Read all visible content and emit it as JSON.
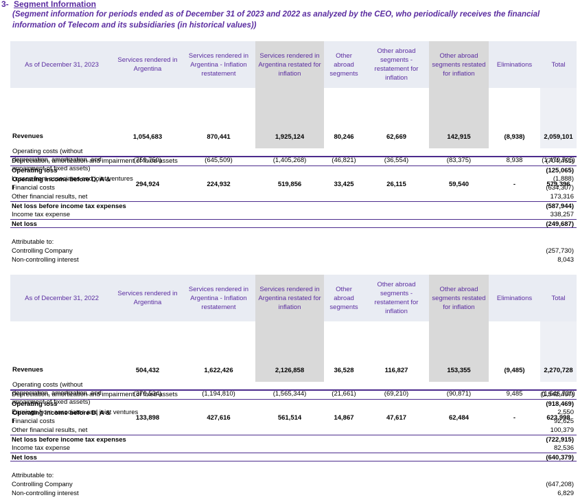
{
  "header": {
    "number": "3-",
    "title": "Segment Information",
    "subtitle": "(Segment information for periods ended as of December 31 of 2023 and 2022 as analyzed by the CEO, who periodically receives the financial information of Telecom and its subsidiaries (in historical values))"
  },
  "tables": [
    {
      "columns": [
        "As of December 31, 2023",
        "Services rendered in Argentina",
        "Services rendered in Argentina - Inflation restatement",
        "Services rendered in Argentina restated for inflation",
        "Other abroad segments",
        "Other abroad segments - restatement for inflation",
        "Other abroad segments restated for inflation",
        "Eliminations",
        "Total"
      ],
      "rows": [
        {
          "label": "Revenues",
          "cells": [
            "1,054,683",
            "870,441",
            "1,925,124",
            "80,246",
            "62,669",
            "142,915",
            "(8,938)",
            "2,059,101"
          ],
          "bold": true
        },
        {
          "label": "Operating costs (without depreciation, amortization, and impairment of fixed assets)",
          "cells": [
            "(759,759)",
            "(645,509)",
            "(1,405,268)",
            "(46,821)",
            "(36,554)",
            "(83,375)",
            "8,938",
            "(1,479,705)"
          ],
          "bold": false
        },
        {
          "label": "Operating income before D, A & I",
          "cells": [
            "294,924",
            "224,932",
            "519,856",
            "33,425",
            "26,115",
            "59,540",
            "-",
            "579,396"
          ],
          "bold": true
        }
      ],
      "summary": [
        {
          "label": "Depreciation, amortization and impairment of fixed assets",
          "value": "(704,461)",
          "bold": false
        },
        {
          "label": "Operating loss",
          "value": "(125,065)",
          "bold": true
        },
        {
          "label": "Losses from associates and joint ventures",
          "value": "(1,888)",
          "bold": false
        },
        {
          "label": "Financial costs",
          "value": "(634,307)",
          "bold": false
        },
        {
          "label": "Other financial results, net",
          "value": "173,316",
          "bold": false
        },
        {
          "label": "Net loss before income tax expenses",
          "value": "(587,944)",
          "bold": true
        },
        {
          "label": "Income tax expense",
          "value": "338,257",
          "bold": false
        },
        {
          "label": "Net loss",
          "value": "(249,687)",
          "bold": true
        },
        {
          "label": "Attributable to:",
          "bold": false
        },
        {
          "label": "Controlling Company",
          "value": "(257,730)",
          "bold": false
        },
        {
          "label": "Non-controlling interest",
          "value": "8,043",
          "bold": false
        }
      ]
    },
    {
      "columns": [
        "As of December 31, 2022",
        "Services rendered in Argentina",
        "Services rendered in Argentina - Inflation restatement",
        "Services rendered in Argentina restated for inflation",
        "Other abroad segments",
        "Other abroad segments - restatement for inflation",
        "Other abroad segments restated for inflation",
        "Eliminations",
        "Total"
      ],
      "rows": [
        {
          "label": "Revenues",
          "cells": [
            "504,432",
            "1,622,426",
            "2,126,858",
            "36,528",
            "116,827",
            "153,355",
            "(9,485)",
            "2,270,728"
          ],
          "bold": true
        },
        {
          "label": "Operating costs (without depreciation, amortization, and impairment of fixed assets)",
          "cells": [
            "(370,534)",
            "(1,194,810)",
            "(1,565,344)",
            "(21,661)",
            "(69,210)",
            "(90,871)",
            "9,485",
            "(1,646,730)"
          ],
          "bold": false
        },
        {
          "label": "Operating income before D, A & I",
          "cells": [
            "133,898",
            "427,616",
            "561,514",
            "14,867",
            "47,617",
            "62,484",
            "-",
            "623,998"
          ],
          "bold": true
        }
      ],
      "summary": [
        {
          "label": "Depreciation, amortization and impairment of fixed assets",
          "value": "(1,542,467)",
          "bold": false
        },
        {
          "label": "Operating loss",
          "value": "(918,469)",
          "bold": true
        },
        {
          "label": "Earnings from associates and joint ventures",
          "value": "2,550",
          "bold": false
        },
        {
          "label": "Financial costs",
          "value": "92,625",
          "bold": false
        },
        {
          "label": "Other financial results, net",
          "value": "100,379",
          "bold": false
        },
        {
          "label": "Net loss before income tax expenses",
          "value": "(722,915)",
          "bold": true
        },
        {
          "label": "Income tax expense",
          "value": "82,536",
          "bold": false
        },
        {
          "label": "Net loss",
          "value": "(640,379)",
          "bold": true
        },
        {
          "label": "Attributable to:",
          "bold": false
        },
        {
          "label": "Controlling Company",
          "value": "(647,208)",
          "bold": false
        },
        {
          "label": "Non-controlling interest",
          "value": "6,829",
          "bold": false
        }
      ]
    }
  ]
}
